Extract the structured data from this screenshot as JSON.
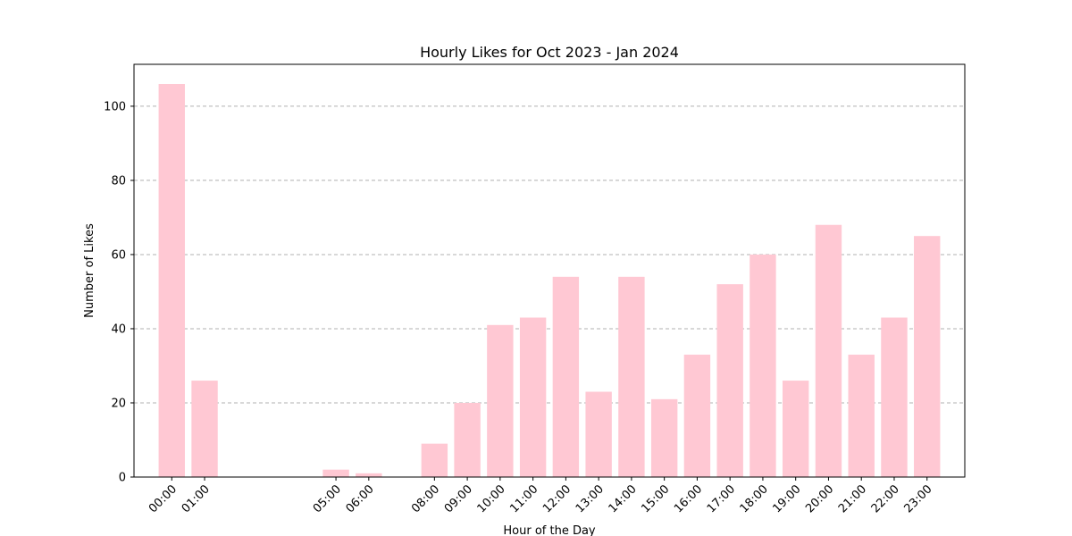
{
  "chart_data": {
    "type": "bar",
    "title": "Hourly Likes for Oct 2023 - Jan 2024",
    "xlabel": "Hour of the Day",
    "ylabel": "Number of Likes",
    "x": [
      0,
      1,
      5,
      6,
      8,
      9,
      10,
      11,
      12,
      13,
      14,
      15,
      16,
      17,
      18,
      19,
      20,
      21,
      22,
      23
    ],
    "categories": [
      "00:00",
      "01:00",
      "05:00",
      "06:00",
      "08:00",
      "09:00",
      "10:00",
      "11:00",
      "12:00",
      "13:00",
      "14:00",
      "15:00",
      "16:00",
      "17:00",
      "18:00",
      "19:00",
      "20:00",
      "21:00",
      "22:00",
      "23:00"
    ],
    "values": [
      106,
      26,
      2,
      1,
      9,
      20,
      41,
      43,
      54,
      23,
      54,
      21,
      33,
      52,
      60,
      26,
      68,
      33,
      43,
      65
    ],
    "xlim": [
      -1.15,
      24.15
    ],
    "ylim": [
      0,
      111.3
    ],
    "yticks": [
      0,
      20,
      40,
      60,
      80,
      100
    ],
    "grid": "y-dashed",
    "bar_color": "#ffc8d3"
  }
}
